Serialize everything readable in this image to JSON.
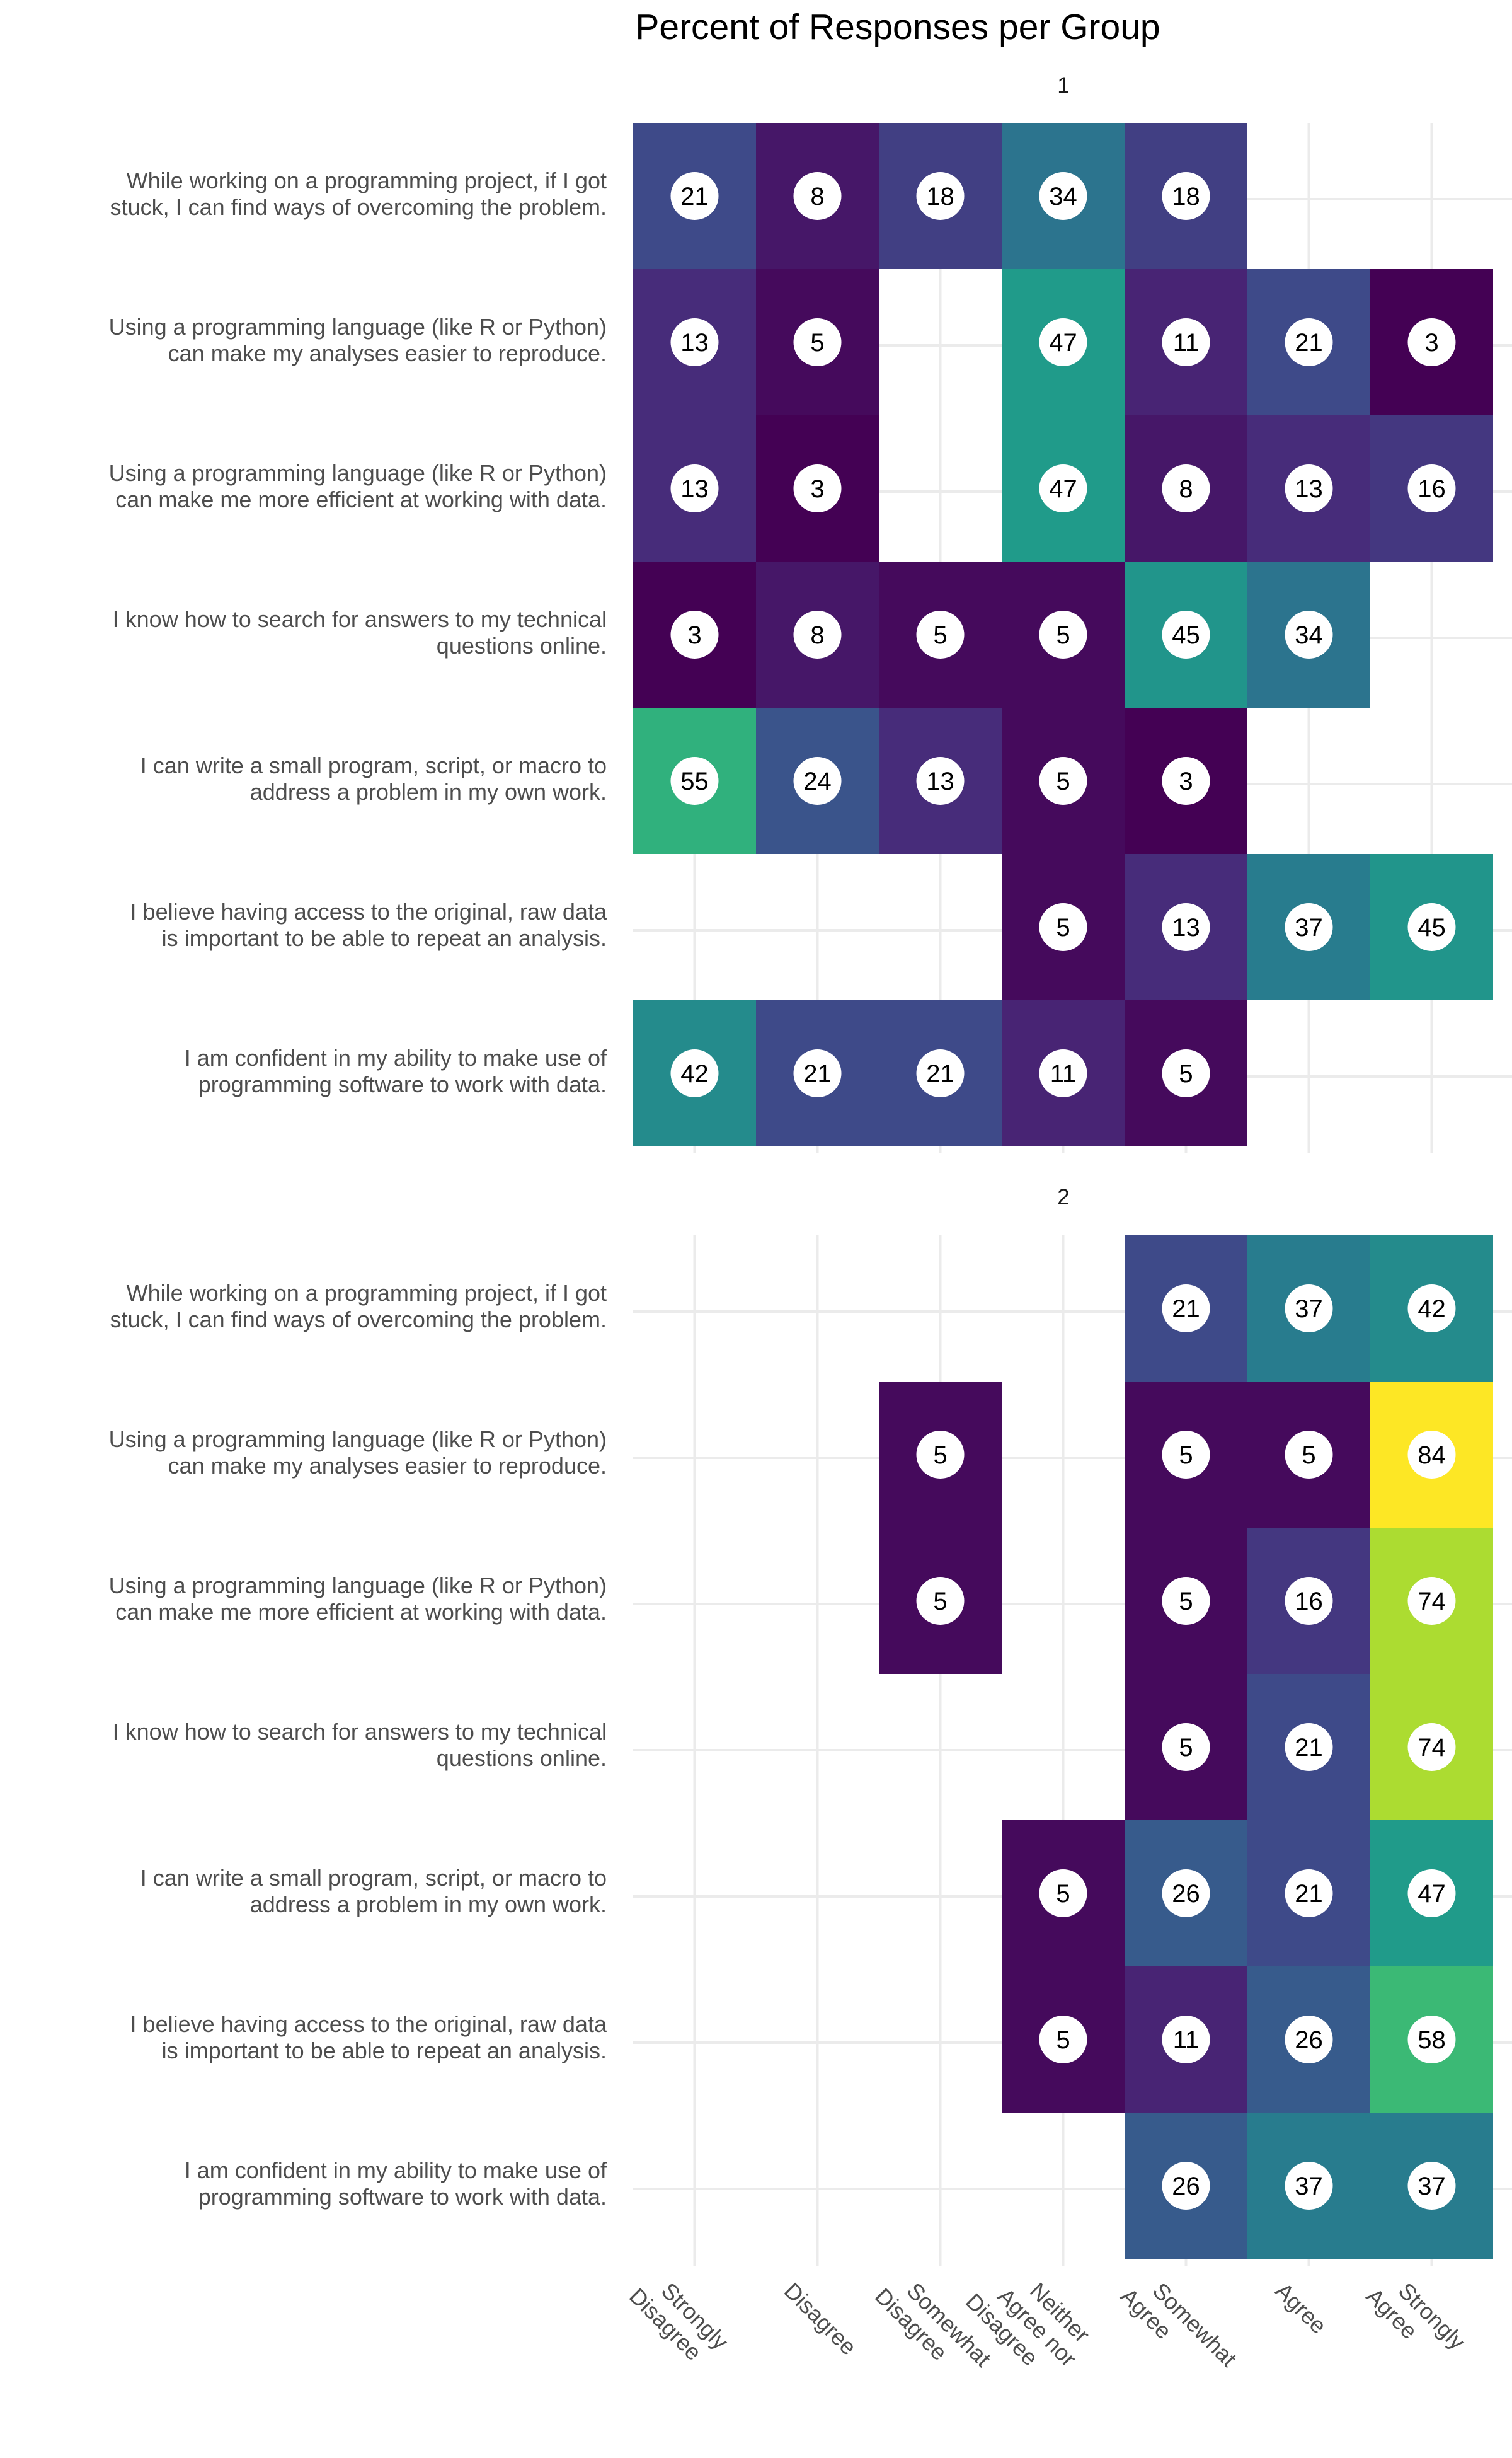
{
  "chart_data": {
    "type": "heatmap",
    "title": "Percent of Responses per Group",
    "columns": [
      "Strongly\nDisagree",
      "Disagree",
      "Somewhat\nDisagree",
      "Neither\nAgree nor\nDisagree",
      "Somewhat\nAgree",
      "Agree",
      "Strongly\nAgree"
    ],
    "rows": [
      "While working on a programming project, if I got\nstuck, I can find ways of overcoming the problem.",
      "Using a programming language (like R or Python)\ncan make my analyses easier to reproduce.",
      "Using a programming language (like R or Python)\ncan make me more efficient at working with data.",
      "I know how to search for answers to my technical\nquestions online.",
      "I can write a small program, script, or macro to\naddress a problem in my own work.",
      "I believe having access to the original, raw data\nis important to be able to repeat an analysis.",
      "I am confident in my ability to make use of\nprogramming software to work with data."
    ],
    "color_scale": "viridis",
    "color_range": [
      3,
      84
    ],
    "grid": true,
    "legend": "none",
    "panels": [
      {
        "label": "1",
        "values": [
          [
            21,
            8,
            18,
            34,
            18,
            null,
            null
          ],
          [
            13,
            5,
            null,
            47,
            11,
            21,
            3
          ],
          [
            13,
            3,
            null,
            47,
            8,
            13,
            16
          ],
          [
            3,
            8,
            5,
            5,
            45,
            34,
            null
          ],
          [
            55,
            24,
            13,
            5,
            3,
            null,
            null
          ],
          [
            null,
            null,
            null,
            5,
            13,
            37,
            45
          ],
          [
            42,
            21,
            21,
            11,
            5,
            null,
            null
          ]
        ]
      },
      {
        "label": "2",
        "values": [
          [
            null,
            null,
            null,
            null,
            21,
            37,
            42
          ],
          [
            null,
            null,
            5,
            null,
            5,
            5,
            84
          ],
          [
            null,
            null,
            5,
            null,
            5,
            16,
            74
          ],
          [
            null,
            null,
            null,
            null,
            5,
            21,
            74
          ],
          [
            null,
            null,
            null,
            5,
            26,
            21,
            47
          ],
          [
            null,
            null,
            null,
            5,
            11,
            26,
            58
          ],
          [
            null,
            null,
            null,
            null,
            26,
            37,
            37
          ]
        ]
      }
    ]
  }
}
